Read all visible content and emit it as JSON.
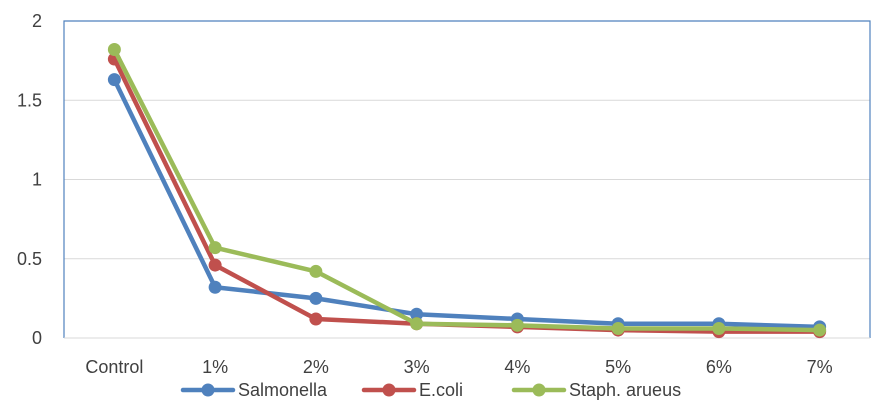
{
  "chart_data": {
    "type": "line",
    "categories": [
      "Control",
      "1%",
      "2%",
      "3%",
      "4%",
      "5%",
      "6%",
      "7%"
    ],
    "ylim": [
      0,
      2
    ],
    "yticks": [
      0,
      0.5,
      1,
      1.5,
      2
    ],
    "ytick_labels": [
      "0",
      "0.5",
      "1",
      "1.5",
      "2"
    ],
    "grid": true,
    "legend_position": "bottom",
    "markers": "circle",
    "series": [
      {
        "name": "Salmonella",
        "color": "#4F81BD",
        "values": [
          1.63,
          0.32,
          0.25,
          0.15,
          0.12,
          0.09,
          0.09,
          0.07
        ]
      },
      {
        "name": "E.coli",
        "color": "#C0504D",
        "values": [
          1.76,
          0.46,
          0.12,
          0.09,
          0.07,
          0.05,
          0.04,
          0.04
        ]
      },
      {
        "name": "Staph. arueus",
        "color": "#9BBB59",
        "values": [
          1.82,
          0.57,
          0.42,
          0.09,
          0.08,
          0.06,
          0.06,
          0.05
        ]
      }
    ]
  }
}
